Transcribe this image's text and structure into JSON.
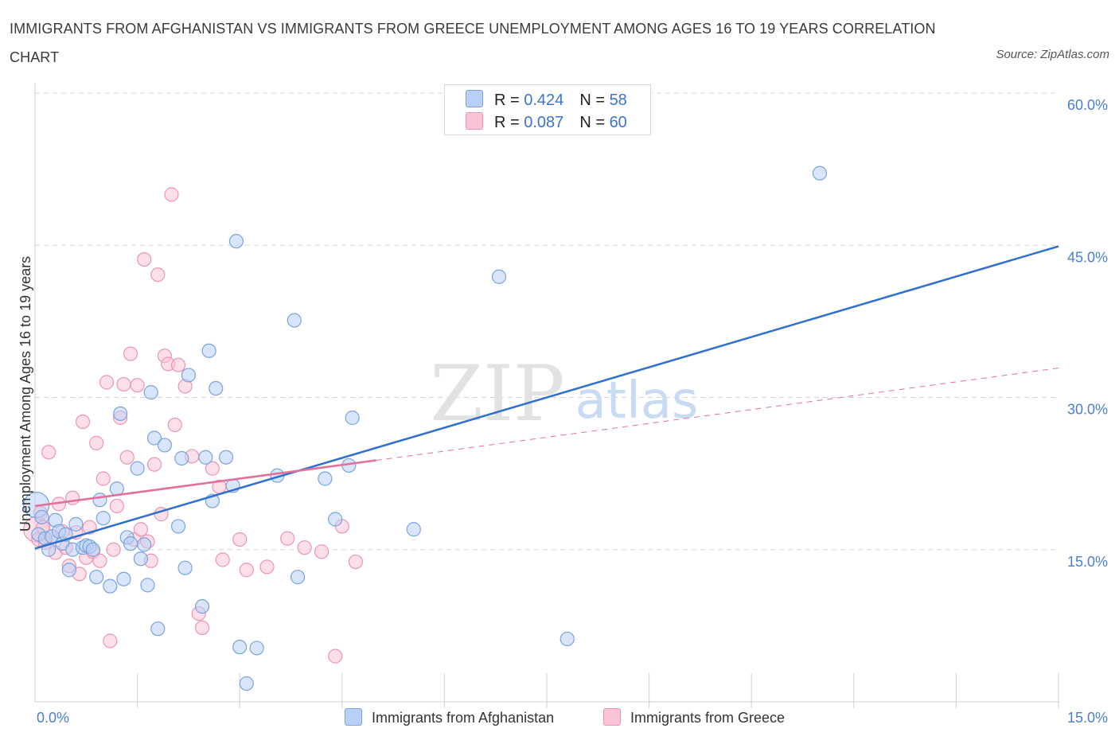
{
  "title": "IMMIGRANTS FROM AFGHANISTAN VS IMMIGRANTS FROM GREECE UNEMPLOYMENT AMONG AGES 16 TO 19 YEARS CORRELATION CHART",
  "source": "Source: ZipAtlas.com",
  "watermark": {
    "zip": "ZIP",
    "atlas": "atlas"
  },
  "colors": {
    "afghanistan_fill": "#b8d0f5",
    "afghanistan_stroke": "#7aa3e0",
    "afghanistan_line": "#2f6fcf",
    "greece_fill": "#f9c4d6",
    "greece_stroke": "#ec95b2",
    "greece_line": "#e3709a",
    "tick_text": "#4a7fd0",
    "grid": "#d5d5d5"
  },
  "legend": {
    "rows": [
      {
        "r_label": "R = ",
        "r_value": "0.424",
        "n_label": "N = ",
        "n_value": "58"
      },
      {
        "r_label": "R = ",
        "r_value": "0.087",
        "n_label": "N = ",
        "n_value": "60"
      }
    ]
  },
  "bottom_legend": [
    "Immigrants from Afghanistan",
    "Immigrants from Greece"
  ],
  "chart_data": {
    "type": "scatter",
    "title": "IMMIGRANTS FROM AFGHANISTAN VS IMMIGRANTS FROM GREECE UNEMPLOYMENT AMONG AGES 16 TO 19 YEARS CORRELATION CHART",
    "xlabel": "",
    "ylabel": "Unemployment Among Ages 16 to 19 years",
    "xlim": [
      0,
      15
    ],
    "ylim": [
      0,
      60
    ],
    "x_tick_labels": [
      "0.0%",
      "15.0%"
    ],
    "y_tick_labels": [
      "15.0%",
      "30.0%",
      "45.0%",
      "60.0%"
    ],
    "y_ticks": [
      15,
      30,
      45,
      60
    ],
    "grid": true,
    "series": [
      {
        "name": "Immigrants from Afghanistan",
        "R": 0.424,
        "N": 58,
        "trend": {
          "x": [
            0,
            15
          ],
          "y": [
            15.1,
            44.9
          ]
        },
        "points": [
          {
            "x": 0.02,
            "y": 19.4,
            "big": true
          },
          {
            "x": 0.05,
            "y": 16.5
          },
          {
            "x": 0.1,
            "y": 18.2
          },
          {
            "x": 0.15,
            "y": 16.1
          },
          {
            "x": 0.2,
            "y": 15.0
          },
          {
            "x": 0.25,
            "y": 16.3
          },
          {
            "x": 0.3,
            "y": 17.9
          },
          {
            "x": 0.35,
            "y": 16.8
          },
          {
            "x": 0.4,
            "y": 15.6
          },
          {
            "x": 0.45,
            "y": 16.5
          },
          {
            "x": 0.5,
            "y": 13.0
          },
          {
            "x": 0.55,
            "y": 15.0
          },
          {
            "x": 0.6,
            "y": 17.5
          },
          {
            "x": 0.7,
            "y": 15.2
          },
          {
            "x": 0.75,
            "y": 15.4
          },
          {
            "x": 0.8,
            "y": 15.3
          },
          {
            "x": 0.85,
            "y": 15.0
          },
          {
            "x": 0.9,
            "y": 12.3
          },
          {
            "x": 0.95,
            "y": 19.9
          },
          {
            "x": 1.0,
            "y": 18.1
          },
          {
            "x": 1.1,
            "y": 11.4
          },
          {
            "x": 1.2,
            "y": 21.0
          },
          {
            "x": 1.25,
            "y": 28.4
          },
          {
            "x": 1.3,
            "y": 12.1
          },
          {
            "x": 1.35,
            "y": 16.2
          },
          {
            "x": 1.4,
            "y": 15.6
          },
          {
            "x": 1.5,
            "y": 23.0
          },
          {
            "x": 1.55,
            "y": 14.1
          },
          {
            "x": 1.6,
            "y": 15.5
          },
          {
            "x": 1.65,
            "y": 11.5
          },
          {
            "x": 1.7,
            "y": 30.5
          },
          {
            "x": 1.75,
            "y": 26.0
          },
          {
            "x": 1.8,
            "y": 7.2
          },
          {
            "x": 1.9,
            "y": 25.3
          },
          {
            "x": 2.1,
            "y": 17.3
          },
          {
            "x": 2.15,
            "y": 24.0
          },
          {
            "x": 2.2,
            "y": 13.2
          },
          {
            "x": 2.25,
            "y": 32.2
          },
          {
            "x": 2.45,
            "y": 9.4
          },
          {
            "x": 2.5,
            "y": 24.1
          },
          {
            "x": 2.55,
            "y": 34.6
          },
          {
            "x": 2.6,
            "y": 19.8
          },
          {
            "x": 2.65,
            "y": 30.9
          },
          {
            "x": 2.8,
            "y": 24.1
          },
          {
            "x": 2.9,
            "y": 21.3
          },
          {
            "x": 2.95,
            "y": 45.4
          },
          {
            "x": 3.0,
            "y": 5.4
          },
          {
            "x": 3.1,
            "y": 1.8
          },
          {
            "x": 3.25,
            "y": 5.3
          },
          {
            "x": 3.55,
            "y": 22.3
          },
          {
            "x": 3.8,
            "y": 37.6
          },
          {
            "x": 3.85,
            "y": 12.3
          },
          {
            "x": 4.25,
            "y": 22.0
          },
          {
            "x": 4.4,
            "y": 18.0
          },
          {
            "x": 4.6,
            "y": 23.3
          },
          {
            "x": 4.65,
            "y": 28.0
          },
          {
            "x": 5.55,
            "y": 17.0
          },
          {
            "x": 6.8,
            "y": 41.9
          },
          {
            "x": 7.8,
            "y": 6.2
          },
          {
            "x": 11.5,
            "y": 52.1
          }
        ]
      },
      {
        "name": "Immigrants from Greece",
        "R": 0.087,
        "N": 60,
        "trend": {
          "x": [
            0,
            5.0
          ],
          "y": [
            19.3,
            23.8
          ]
        },
        "trend_dashed": {
          "x": [
            5.0,
            15
          ],
          "y": [
            23.8,
            32.9
          ]
        },
        "points": [
          {
            "x": 0.02,
            "y": 17.0,
            "big": true
          },
          {
            "x": 0.05,
            "y": 16.0
          },
          {
            "x": 0.08,
            "y": 18.6
          },
          {
            "x": 0.12,
            "y": 17.2
          },
          {
            "x": 0.15,
            "y": 15.7
          },
          {
            "x": 0.2,
            "y": 24.6
          },
          {
            "x": 0.25,
            "y": 16.3
          },
          {
            "x": 0.3,
            "y": 14.7
          },
          {
            "x": 0.35,
            "y": 19.5
          },
          {
            "x": 0.4,
            "y": 16.8
          },
          {
            "x": 0.45,
            "y": 15.2
          },
          {
            "x": 0.5,
            "y": 13.4
          },
          {
            "x": 0.55,
            "y": 20.1
          },
          {
            "x": 0.6,
            "y": 16.7
          },
          {
            "x": 0.65,
            "y": 12.6
          },
          {
            "x": 0.7,
            "y": 27.6
          },
          {
            "x": 0.75,
            "y": 14.2
          },
          {
            "x": 0.8,
            "y": 17.2
          },
          {
            "x": 0.85,
            "y": 14.8
          },
          {
            "x": 0.9,
            "y": 25.5
          },
          {
            "x": 0.95,
            "y": 13.9
          },
          {
            "x": 1.0,
            "y": 22.0
          },
          {
            "x": 1.05,
            "y": 31.5
          },
          {
            "x": 1.1,
            "y": 6.0
          },
          {
            "x": 1.15,
            "y": 15.0
          },
          {
            "x": 1.2,
            "y": 19.3
          },
          {
            "x": 1.25,
            "y": 28.0
          },
          {
            "x": 1.3,
            "y": 31.3
          },
          {
            "x": 1.35,
            "y": 24.1
          },
          {
            "x": 1.4,
            "y": 34.3
          },
          {
            "x": 1.45,
            "y": 16.0
          },
          {
            "x": 1.5,
            "y": 31.2
          },
          {
            "x": 1.55,
            "y": 17.0
          },
          {
            "x": 1.6,
            "y": 43.6
          },
          {
            "x": 1.65,
            "y": 15.8
          },
          {
            "x": 1.7,
            "y": 13.9
          },
          {
            "x": 1.75,
            "y": 23.4
          },
          {
            "x": 1.8,
            "y": 42.1
          },
          {
            "x": 1.85,
            "y": 18.5
          },
          {
            "x": 1.9,
            "y": 34.1
          },
          {
            "x": 1.95,
            "y": 33.3
          },
          {
            "x": 2.0,
            "y": 50.0
          },
          {
            "x": 2.05,
            "y": 27.3
          },
          {
            "x": 2.1,
            "y": 33.2
          },
          {
            "x": 2.2,
            "y": 31.1
          },
          {
            "x": 2.3,
            "y": 24.2
          },
          {
            "x": 2.4,
            "y": 8.7
          },
          {
            "x": 2.45,
            "y": 7.3
          },
          {
            "x": 2.6,
            "y": 23.0
          },
          {
            "x": 2.7,
            "y": 21.2
          },
          {
            "x": 2.75,
            "y": 14.0
          },
          {
            "x": 3.0,
            "y": 16.0
          },
          {
            "x": 3.1,
            "y": 13.0
          },
          {
            "x": 3.4,
            "y": 13.3
          },
          {
            "x": 3.7,
            "y": 16.1
          },
          {
            "x": 3.95,
            "y": 15.2
          },
          {
            "x": 4.2,
            "y": 14.8
          },
          {
            "x": 4.4,
            "y": 4.5
          },
          {
            "x": 4.5,
            "y": 17.3
          },
          {
            "x": 4.7,
            "y": 13.8
          }
        ]
      }
    ]
  }
}
